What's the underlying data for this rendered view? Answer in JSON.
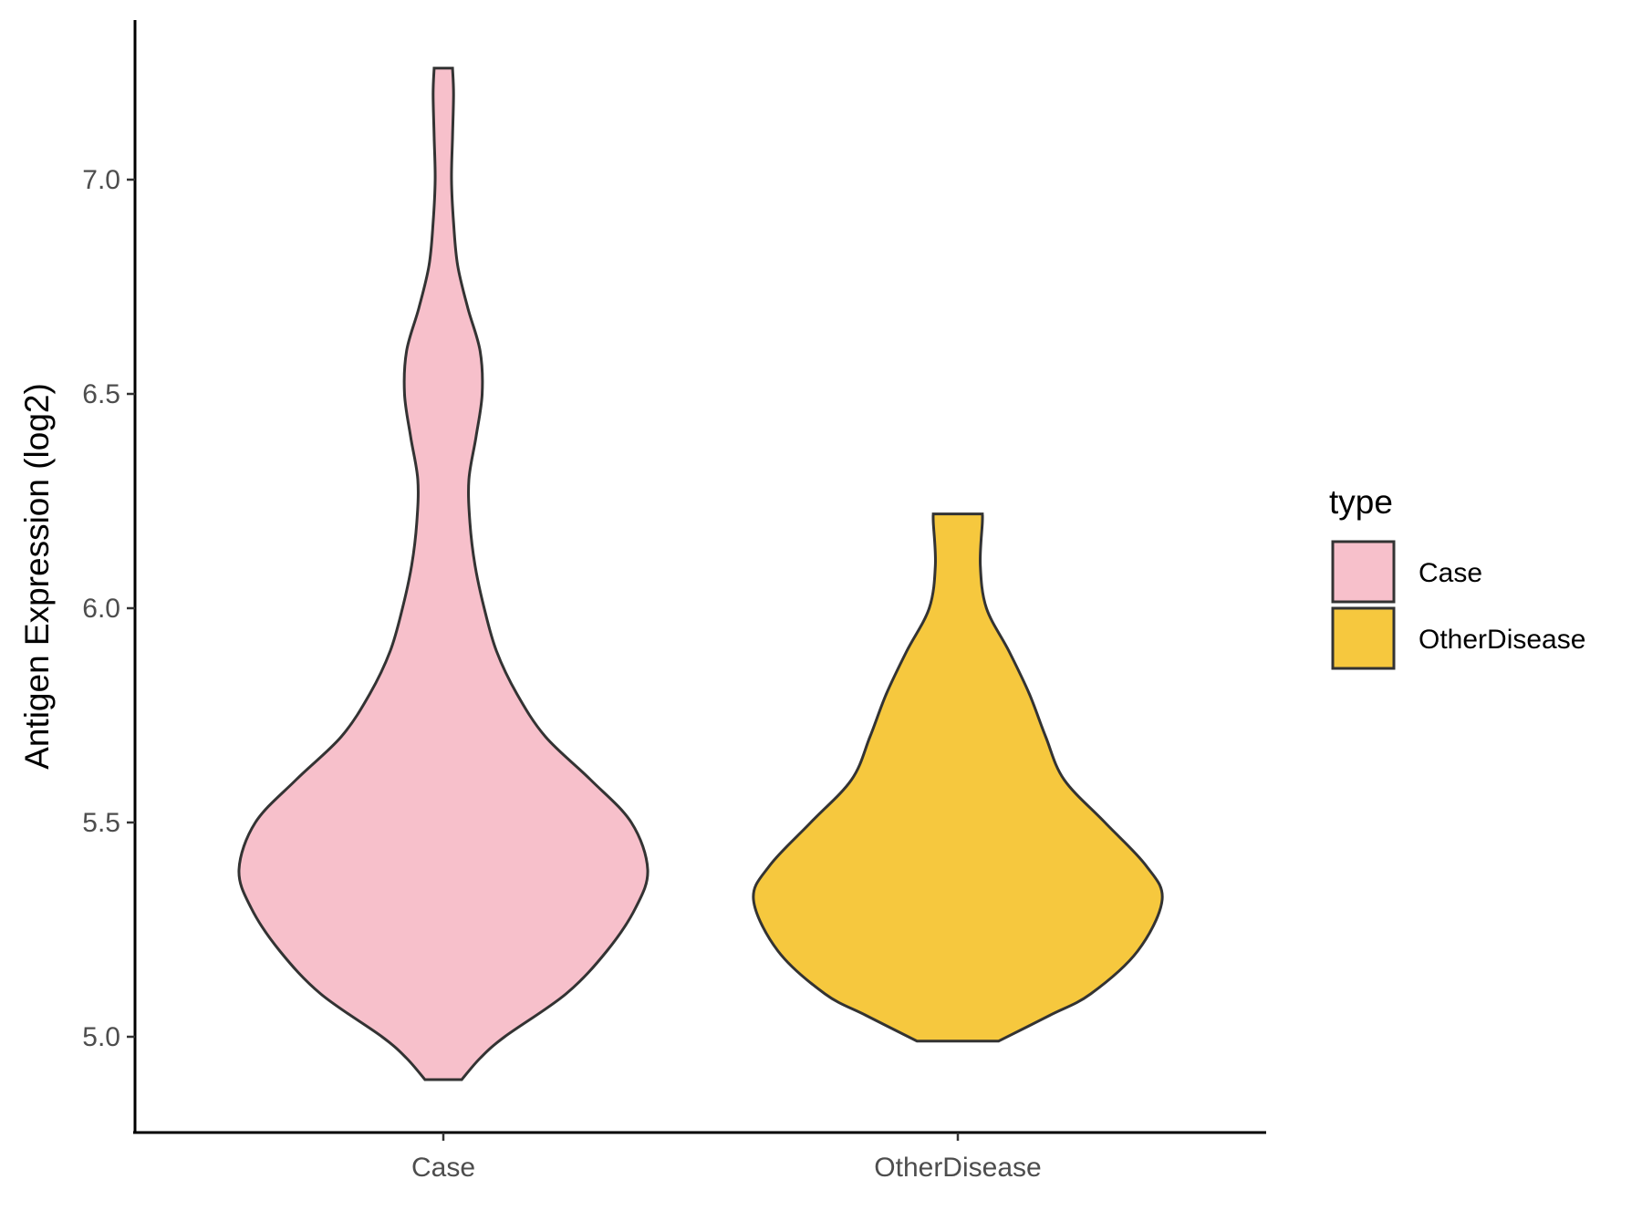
{
  "chart_data": {
    "type": "violin",
    "title": "",
    "xlabel": "",
    "ylabel": "Antigen Expression (log2)",
    "categories": [
      "Case",
      "OtherDisease"
    ],
    "ylim": [
      4.78,
      7.38
    ],
    "yticks": [
      "5.0",
      "5.5",
      "6.0",
      "6.5",
      "7.0"
    ],
    "grid": false,
    "legend": {
      "title": "type",
      "placement": "right",
      "entries": [
        {
          "label": "Case",
          "color": "#F7C0CB"
        },
        {
          "label": "OtherDisease",
          "color": "#F6C83E"
        }
      ]
    },
    "series": [
      {
        "category": "Case",
        "color": "#F7C0CB",
        "min": 4.9,
        "max": 7.26,
        "density_profile": [
          [
            4.9,
            0.09
          ],
          [
            4.95,
            0.18
          ],
          [
            5.0,
            0.3
          ],
          [
            5.1,
            0.6
          ],
          [
            5.2,
            0.8
          ],
          [
            5.3,
            0.94
          ],
          [
            5.39,
            1.0
          ],
          [
            5.5,
            0.92
          ],
          [
            5.6,
            0.72
          ],
          [
            5.7,
            0.5
          ],
          [
            5.8,
            0.36
          ],
          [
            5.9,
            0.26
          ],
          [
            6.0,
            0.2
          ],
          [
            6.1,
            0.155
          ],
          [
            6.2,
            0.13
          ],
          [
            6.3,
            0.125
          ],
          [
            6.4,
            0.16
          ],
          [
            6.5,
            0.19
          ],
          [
            6.6,
            0.18
          ],
          [
            6.7,
            0.12
          ],
          [
            6.8,
            0.07
          ],
          [
            6.9,
            0.05
          ],
          [
            7.0,
            0.04
          ],
          [
            7.1,
            0.045
          ],
          [
            7.2,
            0.05
          ],
          [
            7.26,
            0.045
          ]
        ]
      },
      {
        "category": "OtherDisease",
        "color": "#F6C83E",
        "min": 4.99,
        "max": 6.22,
        "density_profile": [
          [
            4.99,
            0.2
          ],
          [
            5.05,
            0.45
          ],
          [
            5.1,
            0.65
          ],
          [
            5.2,
            0.88
          ],
          [
            5.32,
            1.0
          ],
          [
            5.4,
            0.92
          ],
          [
            5.5,
            0.72
          ],
          [
            5.6,
            0.52
          ],
          [
            5.7,
            0.43
          ],
          [
            5.8,
            0.35
          ],
          [
            5.9,
            0.25
          ],
          [
            6.0,
            0.14
          ],
          [
            6.1,
            0.11
          ],
          [
            6.2,
            0.12
          ],
          [
            6.22,
            0.12
          ]
        ]
      }
    ]
  }
}
